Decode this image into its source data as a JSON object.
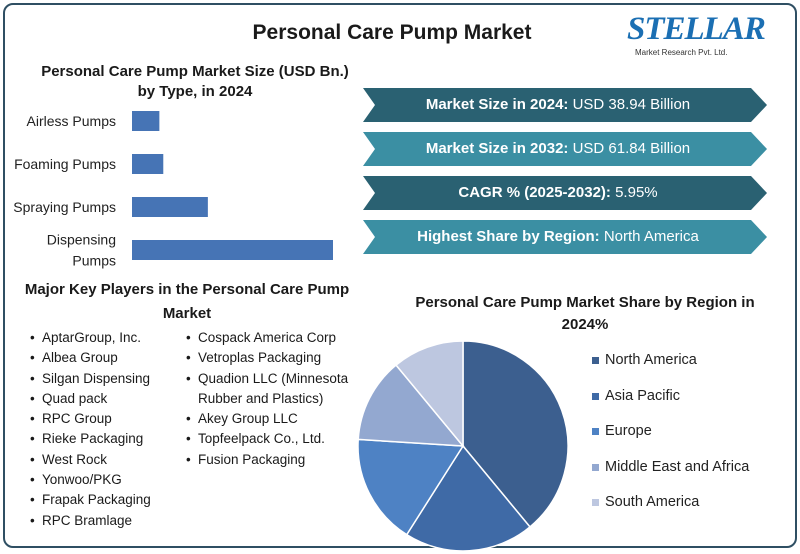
{
  "header": {
    "title": "Personal Care Pump Market",
    "logo_text": "STELLAR",
    "logo_subtext": "Market Research Pvt. Ltd."
  },
  "colors": {
    "frame": "#2f4f63",
    "bar": "#4674b5",
    "banner_dark": "#2a6172",
    "banner_light": "#3b8fa3",
    "logo": "#1b6fb3"
  },
  "banners": [
    {
      "label": "Market Size in 2024:",
      "value": " USD 38.94 Billion",
      "color": "#2a6172"
    },
    {
      "label": "Market Size in 2032:",
      "value": " USD 61.84 Billion",
      "color": "#3b8fa3"
    },
    {
      "label": "CAGR % (2025-2032):",
      "value": " 5.95%",
      "color": "#2a6172"
    },
    {
      "label": "Highest Share by Region:",
      "value": " North America",
      "color": "#3b8fa3"
    }
  ],
  "key_players": {
    "title": "Major Key Players in the Personal Care Pump Market",
    "column1": [
      "AptarGroup, Inc.",
      "Albea Group",
      "Silgan Dispensing",
      "Quad pack",
      "RPC Group",
      "Rieke Packaging",
      "West Rock",
      "Yonwoo/PKG",
      "Frapak Packaging",
      "RPC Bramlage"
    ],
    "column2": [
      "Cospack America Corp",
      "Vetroplas Packaging",
      "Quadion LLC (Minnesota Rubber and Plastics)",
      "Akey Group LLC",
      "Topfeelpack Co., Ltd.",
      "Fusion Packaging"
    ]
  },
  "chart_data": [
    {
      "type": "bar",
      "orientation": "horizontal",
      "title": "Personal Care Pump Market Size (USD Bn.) by Type, in 2024",
      "categories": [
        "Airless Pumps",
        "Foaming Pumps",
        "Spraying Pumps",
        "Dispensing Pumps"
      ],
      "values": [
        3.5,
        4.0,
        9.7,
        25.7
      ],
      "color": "#4674b5",
      "axes_shown": false,
      "grid": false
    },
    {
      "type": "pie",
      "title": "Personal Care Pump Market Share by Region in 2024%",
      "categories": [
        "North America",
        "Asia Pacific",
        "Europe",
        "Middle East and Africa",
        "South America"
      ],
      "values": [
        39,
        20,
        17,
        13,
        11
      ],
      "colors": [
        "#3c5f8f",
        "#3f6aa6",
        "#4e82c4",
        "#93a8d0",
        "#bdc7e0"
      ],
      "legend": "right"
    }
  ]
}
